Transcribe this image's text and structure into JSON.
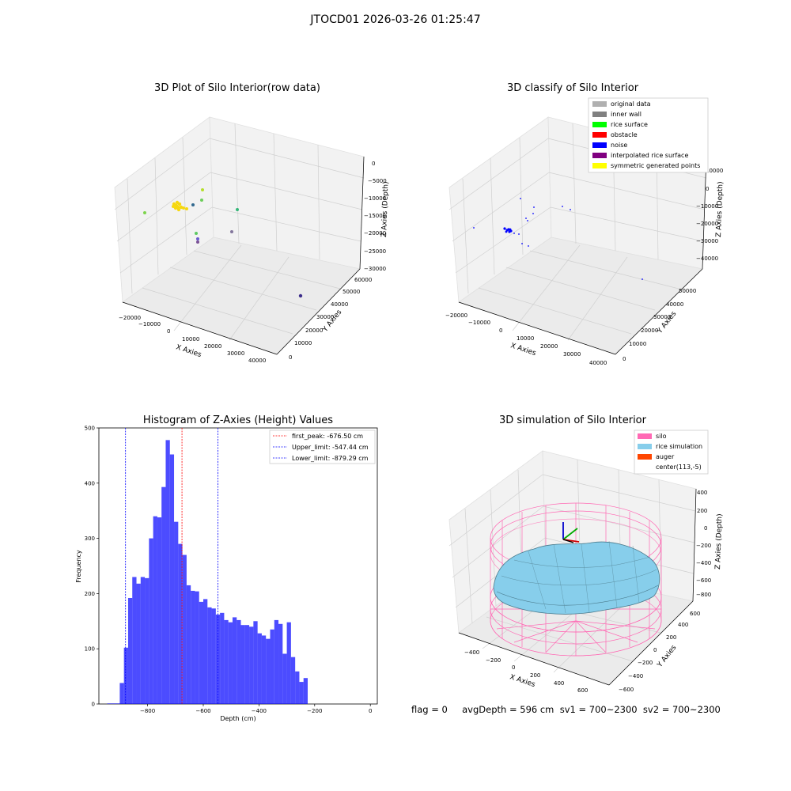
{
  "suptitle": "JTOCD01 2026-03-26 01:25:47",
  "footer": "flag = 0     avgDepth = 596 cm  sv1 = 700~2300  sv2 = 700~2300",
  "panel_raw": {
    "title": "3D Plot of Silo Interior(row data)",
    "xlabel": "X Axies",
    "ylabel": "Y Axies",
    "zlabel": "Z Axies (Depth)",
    "xticks": [
      "−20000",
      "−10000",
      "0",
      "10000",
      "20000",
      "30000",
      "40000"
    ],
    "yticks": [
      "0",
      "10000",
      "20000",
      "30000",
      "40000",
      "50000",
      "60000"
    ],
    "zticks": [
      "0",
      "−5000",
      "−10000",
      "−15000",
      "−20000",
      "−25000",
      "−30000"
    ]
  },
  "panel_classify": {
    "title": "3D classify of Silo Interior",
    "xlabel": "X Axies",
    "ylabel": "Y Axies",
    "zlabel": "Z Axies (Depth)",
    "xticks": [
      "−20000",
      "−10000",
      "0",
      "10000",
      "20000",
      "30000",
      "40000"
    ],
    "yticks": [
      "0",
      "10000",
      "20000",
      "30000",
      "40000",
      "50000"
    ],
    "zticks": [
      "10000",
      "0",
      "−10000",
      "−20000",
      "−30000",
      "−40000"
    ],
    "legend": [
      {
        "label": "original data",
        "color": "#b0b0b0"
      },
      {
        "label": "inner wall",
        "color": "#808080"
      },
      {
        "label": "rice surface",
        "color": "#00ff00"
      },
      {
        "label": "obstacle",
        "color": "#ff0000"
      },
      {
        "label": "noise",
        "color": "#0000ff"
      },
      {
        "label": "interpolated rice surface",
        "color": "#800080"
      },
      {
        "label": "symmetric generated points",
        "color": "#ffff00"
      }
    ]
  },
  "panel_sim": {
    "title": "3D simulation of Silo Interior",
    "xlabel": "X Axies",
    "ylabel": "Y Axies",
    "zlabel": "Z Axies (Depth)",
    "xticks": [
      "−400",
      "−200",
      "0",
      "200",
      "400",
      "600"
    ],
    "yticks": [
      "−600",
      "−400",
      "−200",
      "0",
      "200",
      "400",
      "600"
    ],
    "zticks": [
      "400",
      "200",
      "0",
      "−200",
      "−400",
      "−600",
      "−800"
    ],
    "legend": [
      {
        "label": "silo",
        "color": "#ff69b4"
      },
      {
        "label": "rice simulation",
        "color": "#87ceeb"
      },
      {
        "label": "auger",
        "color": "#ff4500"
      },
      {
        "label": "center(113,-5)",
        "color": ""
      }
    ]
  },
  "chart_data": {
    "type": "bar",
    "title": "Histogram of Z-Axies (Height) Values",
    "xlabel": "Depth (cm)",
    "ylabel": "Frequency",
    "xlim": [
      -975,
      25
    ],
    "ylim": [
      0,
      500
    ],
    "xticks": [
      -800,
      -600,
      -400,
      -200,
      0
    ],
    "yticks": [
      0,
      100,
      200,
      300,
      400,
      500
    ],
    "bar_color": "#0000ff",
    "bin_start": -945,
    "bin_width": 15,
    "values": [
      1,
      1,
      1,
      38,
      102,
      192,
      230,
      218,
      230,
      228,
      300,
      340,
      338,
      393,
      478,
      452,
      330,
      290,
      270,
      215,
      205,
      204,
      185,
      190,
      175,
      173,
      162,
      165,
      152,
      148,
      157,
      152,
      143,
      143,
      140,
      150,
      128,
      124,
      118,
      135,
      152,
      145,
      91,
      148,
      85,
      59,
      40,
      47
    ],
    "lines": [
      {
        "label": "first_peak: -676.50 cm",
        "x": -676.5,
        "color": "#ff0000"
      },
      {
        "label": "Upper_limit: -547.44 cm",
        "x": -547.44,
        "color": "#0000ff"
      },
      {
        "label": "Lower_limit: -879.29 cm",
        "x": -879.29,
        "color": "#0000ff"
      }
    ]
  }
}
